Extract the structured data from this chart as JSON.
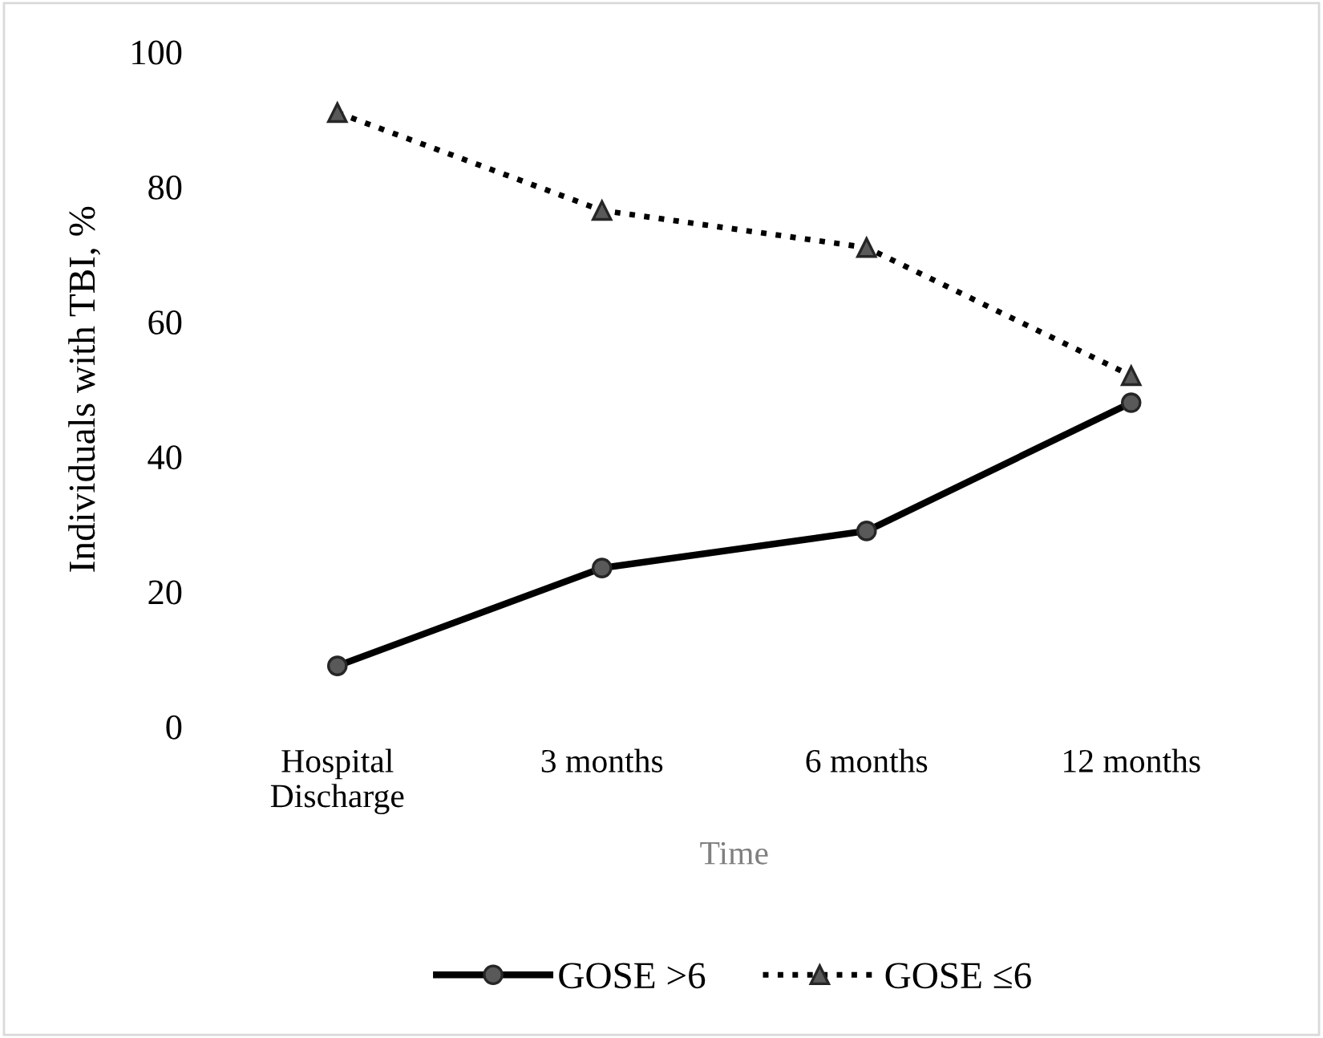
{
  "chart_data": {
    "type": "line",
    "xlabel": "Time",
    "ylabel": "Individuals with TBI, %",
    "categories": [
      "Hospital\nDischarge",
      "3 months",
      "6 months",
      "12 months"
    ],
    "series": [
      {
        "name": "GOSE >6",
        "color": "#000000",
        "values": [
          9,
          23.5,
          29,
          48
        ],
        "marker": "circle",
        "line_style": "solid"
      },
      {
        "name": "GOSE ≤6",
        "color": "#000000",
        "values": [
          91,
          76.5,
          71,
          52
        ],
        "marker": "triangle",
        "line_style": "dotted"
      }
    ],
    "ylim": [
      0,
      100
    ],
    "yticks": [
      0,
      20,
      40,
      60,
      80,
      100
    ],
    "grid": false,
    "legend": "bottom"
  }
}
